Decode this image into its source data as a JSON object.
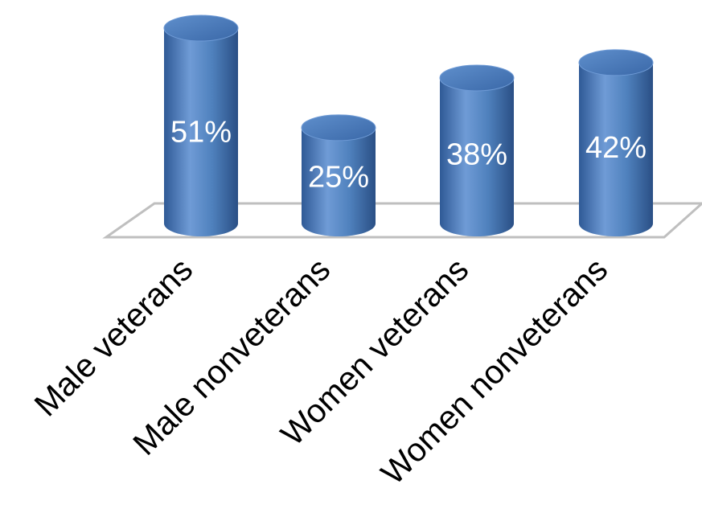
{
  "chart_data": {
    "type": "bar",
    "style": "3d-cylinder",
    "categories": [
      "Male veterans",
      "Male nonveterans",
      "Women veterans",
      "Women nonveterans"
    ],
    "values": [
      51,
      25,
      38,
      42
    ],
    "data_labels": [
      "51%",
      "25%",
      "38%",
      "42%"
    ],
    "value_unit": "%",
    "ylim": [
      0,
      51
    ],
    "grid": false,
    "legend": "none",
    "title": "",
    "xlabel": "",
    "ylabel": "",
    "colors": {
      "bar": "#4f81bd",
      "bar_dark": "#2f5a96",
      "bar_light": "#6f9bd6",
      "label": "#ffffff",
      "floor_edge": "#bfbfbf"
    }
  }
}
